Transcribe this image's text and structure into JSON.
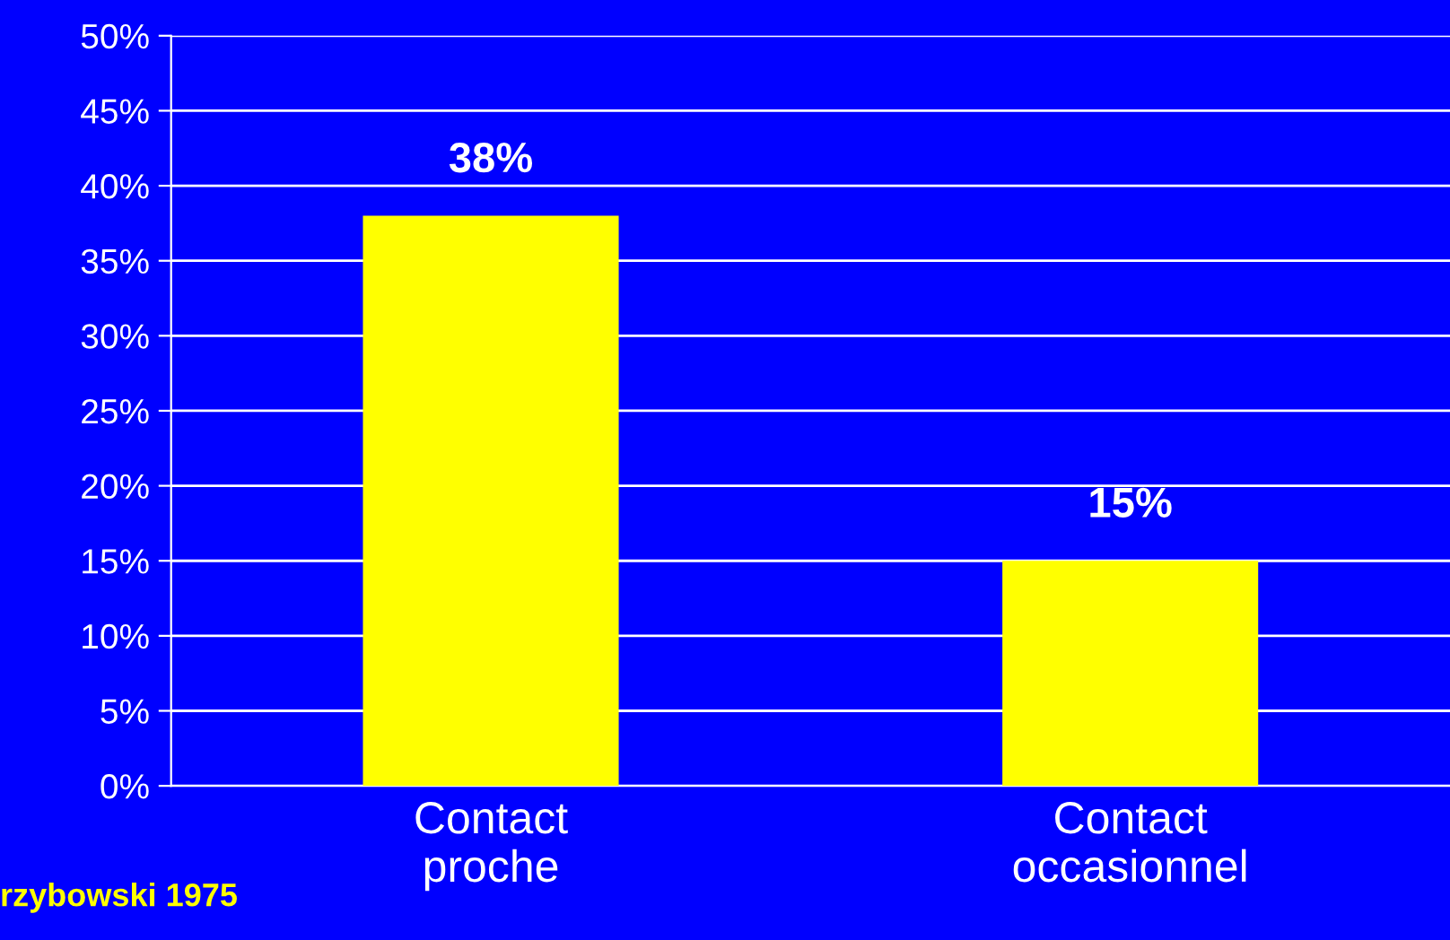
{
  "chart_data": {
    "type": "bar",
    "categories": [
      "Contact\nproche",
      "Contact\noccasionnel"
    ],
    "values": [
      38,
      15
    ],
    "value_labels": [
      "38%",
      "15%"
    ],
    "color": "#ffff00",
    "ylim": [
      0,
      50
    ],
    "yticks": [
      {
        "value": 0,
        "label": "0%"
      },
      {
        "value": 5,
        "label": "5%"
      },
      {
        "value": 10,
        "label": "10%"
      },
      {
        "value": 15,
        "label": "15%"
      },
      {
        "value": 20,
        "label": "20%"
      },
      {
        "value": 25,
        "label": "25%"
      },
      {
        "value": 30,
        "label": "30%"
      },
      {
        "value": 35,
        "label": "35%"
      },
      {
        "value": 40,
        "label": "40%"
      },
      {
        "value": 45,
        "label": "45%"
      },
      {
        "value": 50,
        "label": "50%"
      }
    ],
    "grid": "y",
    "annotations": [
      "rzybowski 1975"
    ]
  }
}
